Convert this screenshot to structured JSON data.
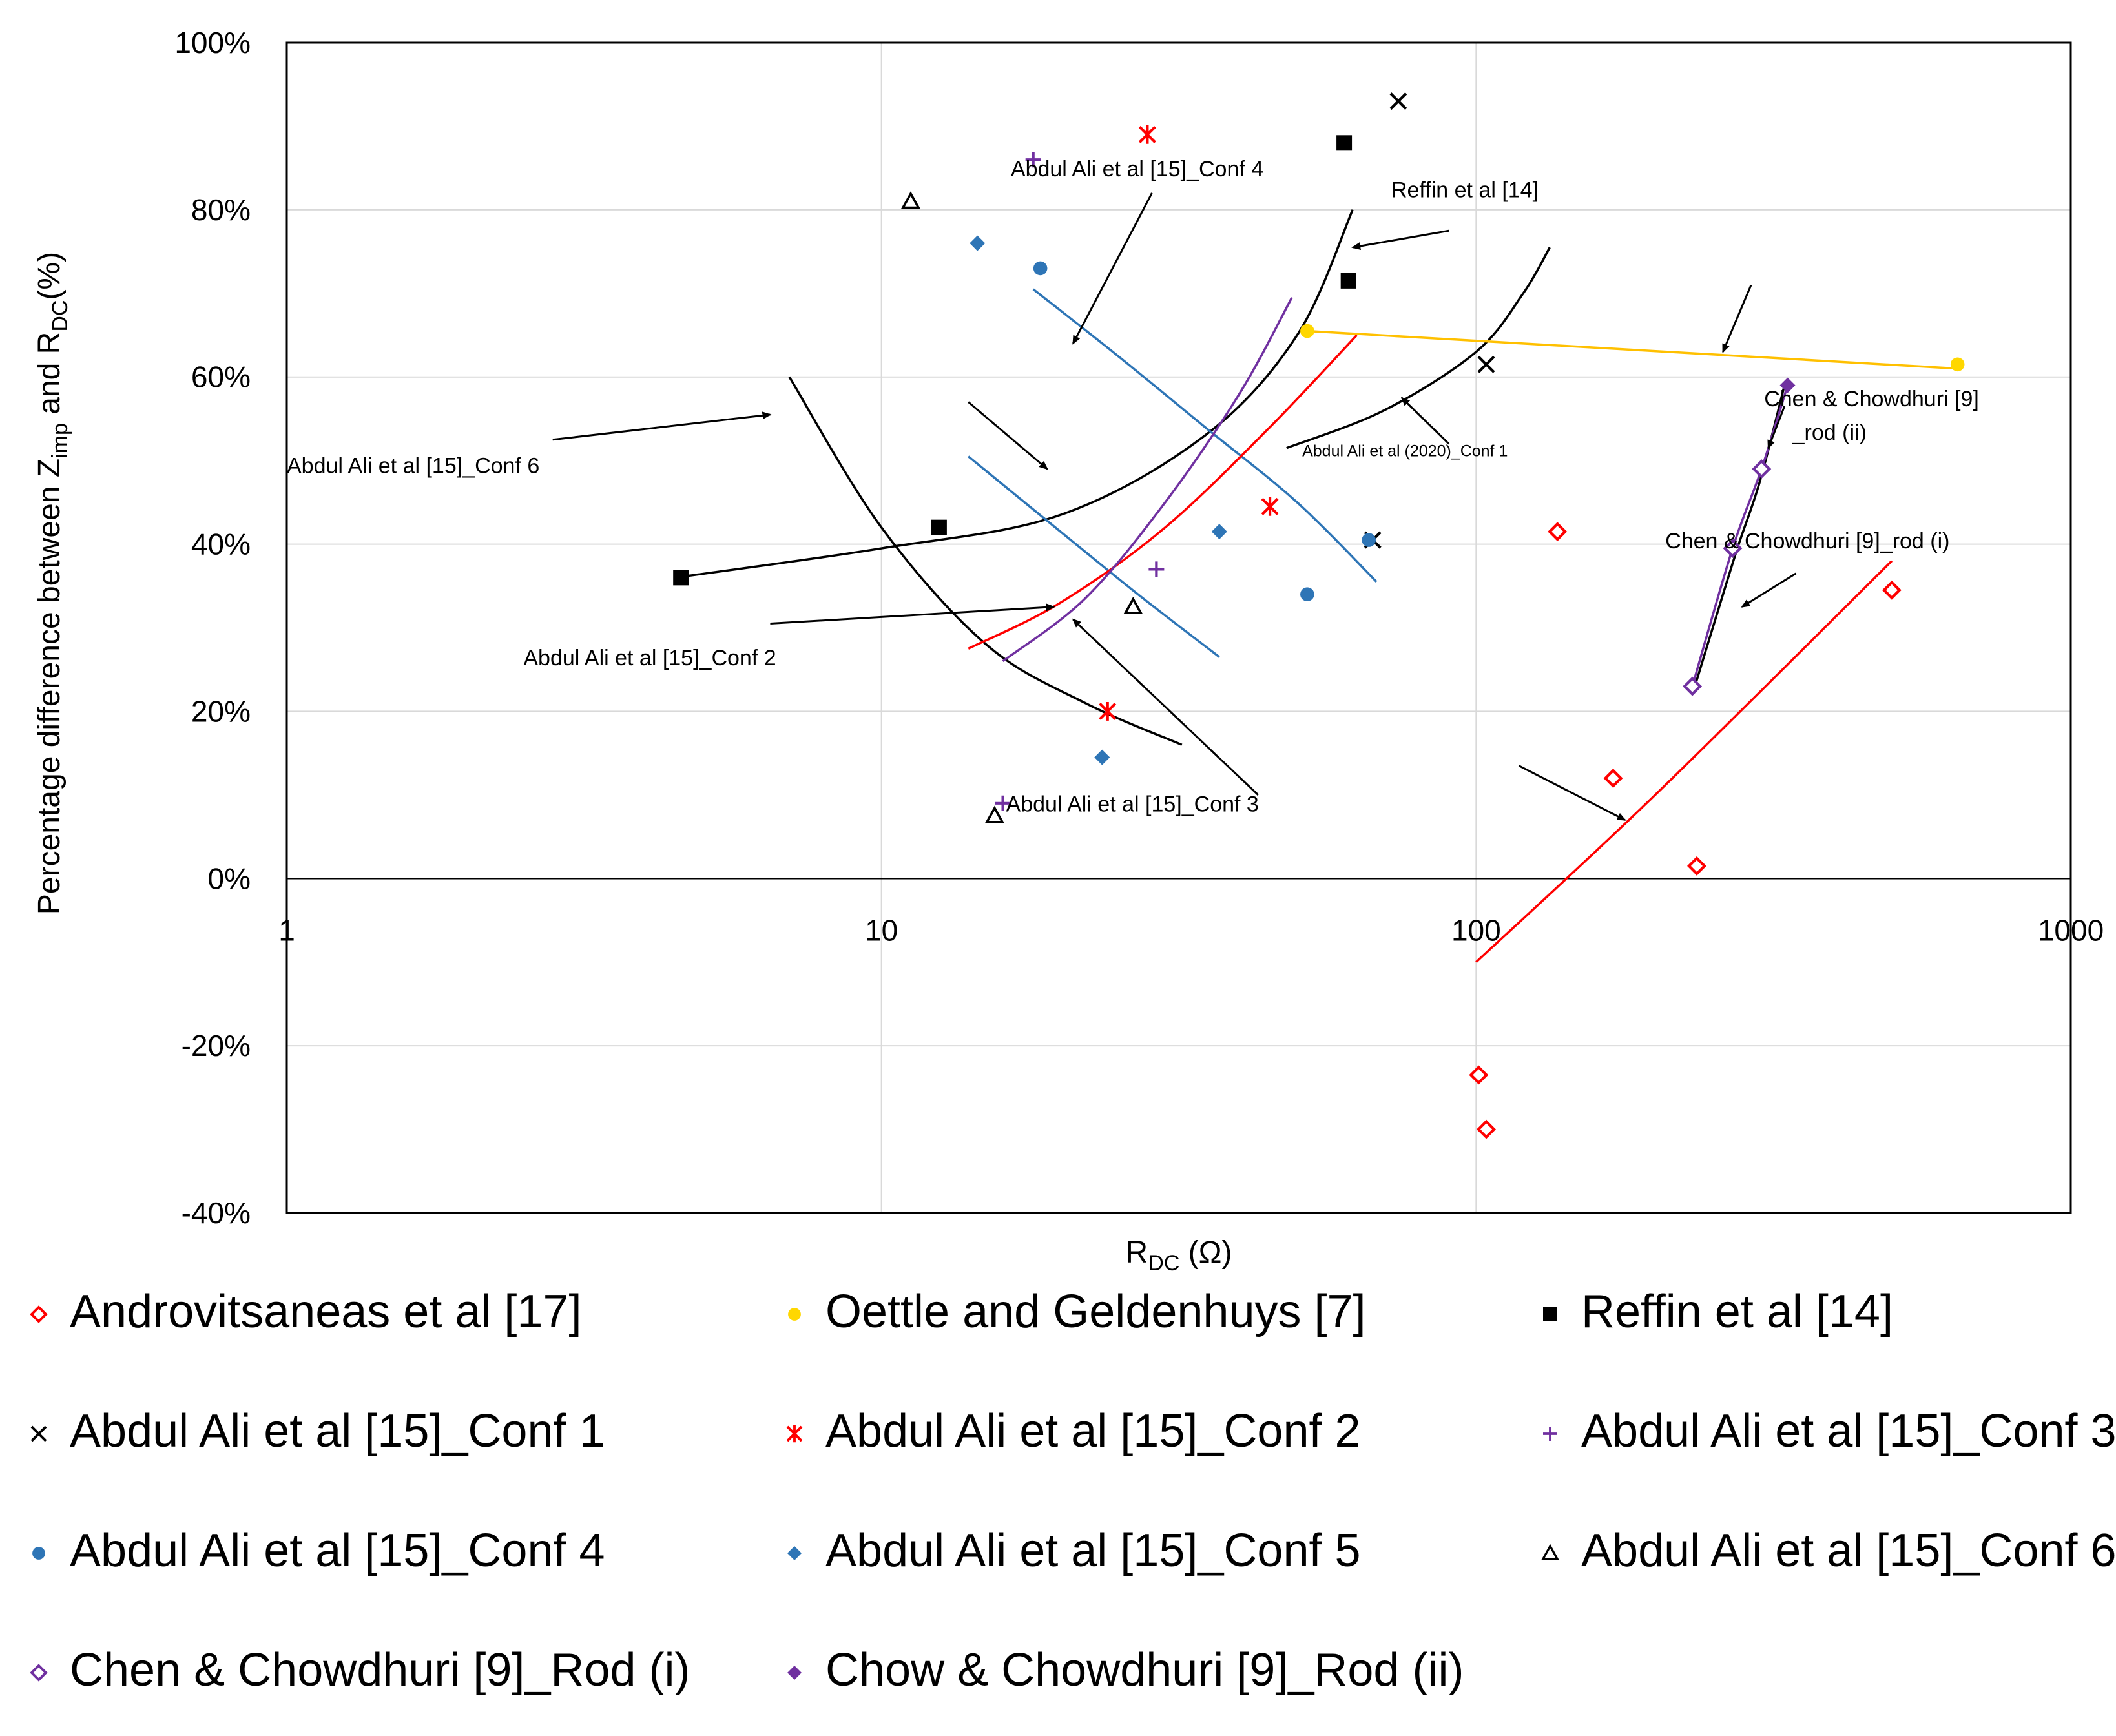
{
  "chart_data": {
    "type": "scatter",
    "title": "",
    "xlabel": "R_DC (Ω)",
    "xlabel_main": "R",
    "xlabel_sub": "DC",
    "xlabel_unit": " (Ω)",
    "ylabel": "Percentage difference between Z_imp and R_DC(%)",
    "ylabel_part1": "Percentage difference between Z",
    "ylabel_sub1": "imp",
    "ylabel_part2": " and R",
    "ylabel_sub2": "DC",
    "ylabel_part3": "(%)",
    "xscale": "log",
    "xlim": [
      1,
      1000
    ],
    "ylim": [
      -40,
      100
    ],
    "grid": true,
    "xticks": [
      {
        "value": 1,
        "label": "1"
      },
      {
        "value": 10,
        "label": "10"
      },
      {
        "value": 100,
        "label": "100"
      },
      {
        "value": 1000,
        "label": "1000"
      }
    ],
    "yticks": [
      {
        "value": 100,
        "label": "100%"
      },
      {
        "value": 80,
        "label": "80%"
      },
      {
        "value": 60,
        "label": "60%"
      },
      {
        "value": 40,
        "label": "40%"
      },
      {
        "value": 20,
        "label": "20%"
      },
      {
        "value": 0,
        "label": "0%"
      },
      {
        "value": -20,
        "label": "-20%"
      },
      {
        "value": -40,
        "label": "-40%"
      }
    ],
    "series": [
      {
        "name": "Androvitsaneas et al [17]",
        "marker": "diamond-open",
        "color": "#ff0000",
        "points": [
          [
            101,
            -23.5
          ],
          [
            104,
            -30
          ],
          [
            137,
            41.5
          ],
          [
            170,
            12
          ],
          [
            235,
            1.5
          ],
          [
            500,
            34.5
          ]
        ]
      },
      {
        "name": "Oettle and Geldenhuys [7]",
        "marker": "circle",
        "color": "#ffd700",
        "points": [
          [
            52,
            65.5
          ],
          [
            645,
            61.5
          ]
        ]
      },
      {
        "name": "Reffin et al [14]",
        "marker": "square",
        "color": "#000000",
        "points": [
          [
            4.6,
            36
          ],
          [
            12.5,
            42
          ],
          [
            60,
            88
          ],
          [
            61,
            71.5
          ]
        ]
      },
      {
        "name": "Abdul Ali et al [15]_Conf 1",
        "marker": "x",
        "color": "#000000",
        "points": [
          [
            74,
            93
          ],
          [
            67,
            40.5
          ],
          [
            104,
            61.5
          ]
        ]
      },
      {
        "name": "Abdul Ali et al [15]_Conf 2",
        "marker": "star",
        "color": "#ff0000",
        "points": [
          [
            28,
            89
          ],
          [
            45,
            44.5
          ],
          [
            24,
            20
          ]
        ]
      },
      {
        "name": "Abdul Ali et al [15]_Conf 3",
        "marker": "plus",
        "color": "#7030a0",
        "points": [
          [
            18,
            86
          ],
          [
            29,
            37
          ],
          [
            16,
            9
          ]
        ]
      },
      {
        "name": "Abdul Ali et al [15]_Conf 4",
        "marker": "circle",
        "color": "#2e75b6",
        "points": [
          [
            18.5,
            73
          ],
          [
            52,
            34
          ],
          [
            66,
            40.5
          ]
        ]
      },
      {
        "name": "Abdul Ali et al [15]_Conf 5",
        "marker": "diamond",
        "color": "#2e75b6",
        "points": [
          [
            14.5,
            76
          ],
          [
            37,
            41.5
          ],
          [
            23.5,
            14.5
          ]
        ]
      },
      {
        "name": "Abdul Ali et al [15]_Conf 6",
        "marker": "triangle-open",
        "color": "#000000",
        "points": [
          [
            11.2,
            81
          ],
          [
            26.5,
            32.5
          ],
          [
            15.5,
            7.5
          ]
        ]
      },
      {
        "name": "Chen & Chowdhuri [9]_Rod (i)",
        "marker": "diamond-open",
        "color": "#7030a0",
        "points": [
          [
            231,
            23
          ],
          [
            270,
            39.5
          ],
          [
            302,
            49
          ]
        ]
      },
      {
        "name": "Chow & Chowdhuri [9]_Rod (ii)",
        "marker": "diamond",
        "color": "#7030a0",
        "points": [
          [
            334,
            59
          ]
        ]
      }
    ],
    "trendlines": [
      {
        "series": "Reffin et al [14]",
        "color": "#000000",
        "points": [
          [
            4.5,
            36
          ],
          [
            10,
            39.5
          ],
          [
            20,
            43.5
          ],
          [
            35,
            53
          ],
          [
            50,
            65
          ],
          [
            62,
            80
          ]
        ]
      },
      {
        "series": "Abdul Ali et al [15]_Conf 1",
        "color": "#000000",
        "points": [
          [
            48,
            51.5
          ],
          [
            70,
            56
          ],
          [
            100,
            63
          ],
          [
            120,
            70
          ],
          [
            133,
            75.5
          ]
        ]
      },
      {
        "series": "Abdul Ali et al [15]_Conf 4",
        "color": "#2e75b6",
        "points": [
          [
            18,
            70.5
          ],
          [
            25,
            62.5
          ],
          [
            35,
            54
          ],
          [
            50,
            45
          ],
          [
            68,
            35.5
          ]
        ]
      },
      {
        "series": "Abdul Ali et al [15]_Conf 5",
        "color": "#2e75b6",
        "points": [
          [
            14,
            50.5
          ],
          [
            20,
            41.5
          ],
          [
            27,
            34
          ],
          [
            37,
            26.5
          ]
        ]
      },
      {
        "series": "Abdul Ali et al [15]_Conf 6",
        "color": "#000000",
        "points": [
          [
            7,
            60
          ],
          [
            10,
            42
          ],
          [
            15,
            28
          ],
          [
            22,
            21
          ],
          [
            32,
            16
          ]
        ]
      },
      {
        "series": "Abdul Ali et al [15]_Conf 2",
        "color": "#ff0000",
        "points": [
          [
            14,
            27.5
          ],
          [
            20,
            33
          ],
          [
            30,
            42
          ],
          [
            45,
            54
          ],
          [
            63,
            65
          ]
        ]
      },
      {
        "series": "Abdul Ali et al [15]_Conf 3",
        "color": "#7030a0",
        "points": [
          [
            16,
            26
          ],
          [
            22,
            33.5
          ],
          [
            30,
            45
          ],
          [
            40,
            58
          ],
          [
            49,
            69.5
          ]
        ]
      },
      {
        "series": "Oettle and Geldenhuys [7]",
        "color": "#ffc000",
        "points": [
          [
            52,
            65.5
          ],
          [
            645,
            61
          ]
        ]
      },
      {
        "series": "Androvitsaneas et al [17]",
        "color": "#ff0000",
        "points": [
          [
            100,
            -10
          ],
          [
            200,
            10
          ],
          [
            500,
            38
          ]
        ]
      },
      {
        "series": "Chen & Chowdhuri [9]_Rod (i)",
        "color": "#000000",
        "points": [
          [
            231,
            22
          ],
          [
            250,
            30
          ],
          [
            275,
            39.5
          ],
          [
            300,
            47.5
          ],
          [
            330,
            59
          ]
        ]
      },
      {
        "series": "Chow & Chowdhuri [9]_Rod (ii)",
        "color": "#7030a0",
        "points": [
          [
            231,
            23
          ],
          [
            270,
            39.5
          ],
          [
            302,
            49
          ],
          [
            334,
            59
          ]
        ]
      }
    ],
    "annotations": [
      {
        "text": "Abdul Ali et al [15]_Conf 4",
        "x": 16.5,
        "y": 84,
        "size": "normal",
        "arrow_from": [
          28.5,
          82
        ],
        "arrow_to": [
          21,
          64
        ]
      },
      {
        "text": "Reffin et al [14]",
        "x": 72,
        "y": 81.5,
        "size": "normal",
        "arrow_from": [
          90,
          77.5
        ],
        "arrow_to": [
          62,
          75.5
        ]
      },
      {
        "text": "Abdul Ali et al [15]_Conf 6",
        "x": 1.0,
        "y": 48.5,
        "size": "normal",
        "arrow_from": [
          2.8,
          52.5
        ],
        "arrow_to": [
          6.5,
          55.5
        ]
      },
      {
        "text": "Abdul Ali et al (2020)_Conf 1",
        "x": 51,
        "y": 50.5,
        "size": "small",
        "arrow_from": [
          90,
          52
        ],
        "arrow_to": [
          75,
          57.5
        ]
      },
      {
        "text": "Chen & Chowdhuri [9]",
        "x": 305,
        "y": 56.5,
        "size": "normal",
        "arrow_from": [
          null,
          null
        ],
        "arrow_to": [
          null,
          null
        ]
      },
      {
        "text": "_rod (ii)",
        "x": 340,
        "y": 52.5,
        "size": "normal",
        "arrow_from": [
          330,
          56.5
        ],
        "arrow_to": [
          310,
          51.5
        ]
      },
      {
        "text": "Chen & Chowdhuri [9]_rod (i)",
        "x": 208,
        "y": 39.5,
        "size": "normal",
        "arrow_from": [
          345,
          36.5
        ],
        "arrow_to": [
          280,
          32.5
        ]
      },
      {
        "text": "Abdul Ali et al [15]_Conf 2",
        "x": 2.5,
        "y": 25.5,
        "size": "normal",
        "arrow_from": [
          6.5,
          30.5
        ],
        "arrow_to": [
          19.5,
          32.5
        ]
      },
      {
        "text": "Abdul Ali et al [15]_Conf 3",
        "x": 16.2,
        "y": 8,
        "size": "normal",
        "arrow_from": [
          43,
          10
        ],
        "arrow_to": [
          21,
          31
        ]
      },
      {
        "text": "",
        "x": null,
        "y": null,
        "size": "normal",
        "arrow_from": [
          14,
          57
        ],
        "arrow_to": [
          19,
          49
        ]
      },
      {
        "text": "",
        "x": null,
        "y": null,
        "size": "normal",
        "arrow_from": [
          290,
          71
        ],
        "arrow_to": [
          260,
          63
        ]
      },
      {
        "text": "",
        "x": null,
        "y": null,
        "size": "normal",
        "arrow_from": [
          118,
          13.5
        ],
        "arrow_to": [
          178,
          7
        ]
      }
    ]
  },
  "legend": [
    {
      "name": "Androvitsaneas et al [17]",
      "marker": "diamond-open",
      "color": "#ff0000"
    },
    {
      "name": "Oettle and Geldenhuys [7]",
      "marker": "circle",
      "color": "#ffd700"
    },
    {
      "name": "Reffin et al [14]",
      "marker": "square",
      "color": "#000000"
    },
    {
      "name": "Abdul Ali et al [15]_Conf 1",
      "marker": "x",
      "color": "#000000"
    },
    {
      "name": "Abdul Ali et al [15]_Conf 2",
      "marker": "star",
      "color": "#ff0000"
    },
    {
      "name": "Abdul Ali et al [15]_Conf 3",
      "marker": "plus",
      "color": "#7030a0"
    },
    {
      "name": "Abdul Ali et al [15]_Conf 4",
      "marker": "circle",
      "color": "#2e75b6"
    },
    {
      "name": "Abdul Ali et al [15]_Conf 5",
      "marker": "diamond",
      "color": "#2e75b6"
    },
    {
      "name": "Abdul Ali et al [15]_Conf 6",
      "marker": "triangle-open",
      "color": "#000000"
    },
    {
      "name": "Chen & Chowdhuri [9]_Rod (i)",
      "marker": "diamond-open",
      "color": "#7030a0"
    },
    {
      "name": "Chow & Chowdhuri [9]_Rod (ii)",
      "marker": "diamond",
      "color": "#7030a0"
    }
  ]
}
